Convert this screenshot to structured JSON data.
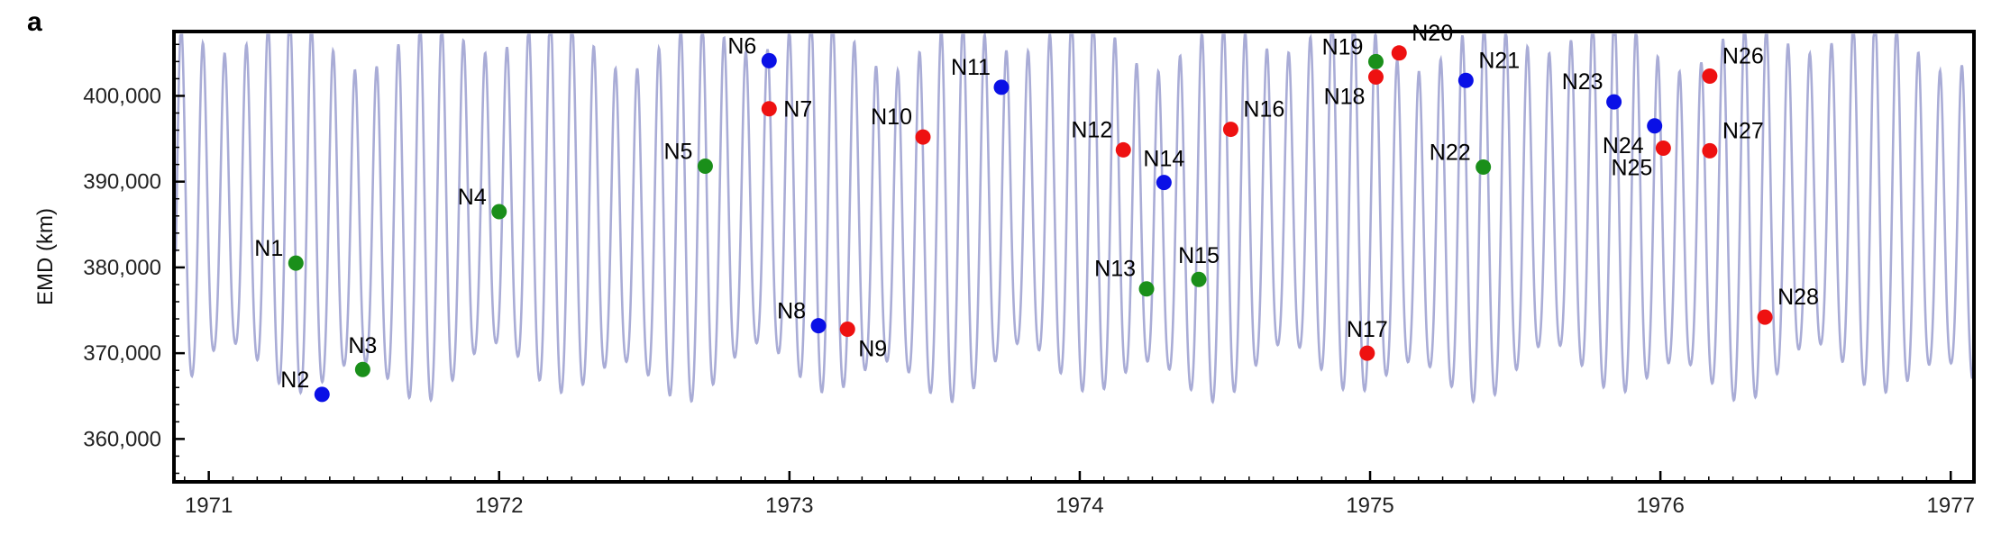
{
  "panel_label": "a",
  "chart_data": {
    "type": "scatter",
    "ylabel": "EMD (km)",
    "xlim": [
      1970.88,
      1977.08
    ],
    "ylim": [
      355000,
      407500
    ],
    "x_ticks": [
      1971,
      1972,
      1973,
      1974,
      1975,
      1976,
      1977
    ],
    "y_ticks": [
      360000,
      370000,
      380000,
      390000,
      400000
    ],
    "y_tick_labels": [
      "360,000",
      "370,000",
      "380,000",
      "390,000",
      "400,000"
    ],
    "background_curve": {
      "color": "#a9acd6"
    },
    "colors": {
      "green": "#1a8f1a",
      "blue": "#0a10e6",
      "red": "#ee1111"
    },
    "points": [
      {
        "label": "N1",
        "x": 1971.3,
        "y": 380500,
        "color": "green",
        "pos": "left"
      },
      {
        "label": "N2",
        "x": 1971.39,
        "y": 365200,
        "color": "blue",
        "pos": "left"
      },
      {
        "label": "N3",
        "x": 1971.53,
        "y": 368100,
        "color": "green",
        "pos": "above"
      },
      {
        "label": "N4",
        "x": 1972.0,
        "y": 386500,
        "color": "green",
        "pos": "left"
      },
      {
        "label": "N5",
        "x": 1972.71,
        "y": 391800,
        "color": "green",
        "pos": "left"
      },
      {
        "label": "N6",
        "x": 1972.93,
        "y": 404100,
        "color": "blue",
        "pos": "left"
      },
      {
        "label": "N7",
        "x": 1972.93,
        "y": 398500,
        "color": "red",
        "pos": "right"
      },
      {
        "label": "N8",
        "x": 1973.1,
        "y": 373200,
        "color": "blue",
        "pos": "left"
      },
      {
        "label": "N9",
        "x": 1973.2,
        "y": 372800,
        "color": "red",
        "pos": "belowright"
      },
      {
        "label": "N10",
        "x": 1973.46,
        "y": 395200,
        "color": "red",
        "pos": "aboveleft"
      },
      {
        "label": "N11",
        "x": 1973.73,
        "y": 401000,
        "color": "blue",
        "pos": "aboveleft"
      },
      {
        "label": "N12",
        "x": 1974.15,
        "y": 393700,
        "color": "red",
        "pos": "aboveleft"
      },
      {
        "label": "N13",
        "x": 1974.23,
        "y": 377500,
        "color": "green",
        "pos": "aboveleft"
      },
      {
        "label": "N14",
        "x": 1974.29,
        "y": 389900,
        "color": "blue",
        "pos": "above"
      },
      {
        "label": "N15",
        "x": 1974.41,
        "y": 378600,
        "color": "green",
        "pos": "above"
      },
      {
        "label": "N16",
        "x": 1974.52,
        "y": 396100,
        "color": "red",
        "pos": "aboveright"
      },
      {
        "label": "N17",
        "x": 1974.99,
        "y": 370000,
        "color": "red",
        "pos": "above"
      },
      {
        "label": "N18",
        "x": 1975.02,
        "y": 402200,
        "color": "red",
        "pos": "belowleft"
      },
      {
        "label": "N19",
        "x": 1975.02,
        "y": 404000,
        "color": "green",
        "pos": "left"
      },
      {
        "label": "N20",
        "x": 1975.1,
        "y": 405000,
        "color": "red",
        "pos": "aboveright"
      },
      {
        "label": "N21",
        "x": 1975.33,
        "y": 401800,
        "color": "blue",
        "pos": "aboveright"
      },
      {
        "label": "N22",
        "x": 1975.39,
        "y": 391700,
        "color": "green",
        "pos": "left"
      },
      {
        "label": "N23",
        "x": 1975.84,
        "y": 399300,
        "color": "blue",
        "pos": "aboveleft"
      },
      {
        "label": "N24",
        "x": 1975.98,
        "y": 396500,
        "color": "blue",
        "pos": "belowleft"
      },
      {
        "label": "N25",
        "x": 1976.01,
        "y": 393900,
        "color": "red",
        "pos": "belowleft"
      },
      {
        "label": "N26",
        "x": 1976.17,
        "y": 402300,
        "color": "red",
        "pos": "aboveright"
      },
      {
        "label": "N27",
        "x": 1976.17,
        "y": 393600,
        "color": "red",
        "pos": "aboveright"
      },
      {
        "label": "N28",
        "x": 1976.36,
        "y": 374200,
        "color": "red",
        "pos": "aboveright"
      }
    ]
  }
}
